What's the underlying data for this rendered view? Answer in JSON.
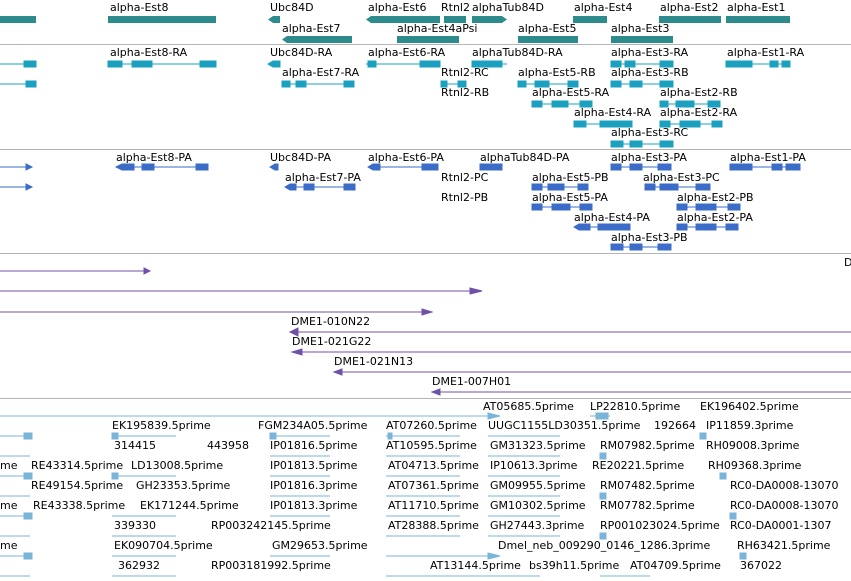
{
  "track_gene": {
    "labels": [
      "alpha-Est8",
      "Ubc84D",
      "alpha-Est6",
      "Rtnl2",
      "alphaTub84D",
      "alpha-Est4",
      "alpha-Est2",
      "alpha-Est1",
      "alpha-Est7",
      "alpha-Est4aPsi",
      "alpha-Est5",
      "alpha-Est3"
    ],
    "color": "#2e8b8b"
  },
  "track_mrna": {
    "labels": [
      "alpha-Est8-RA",
      "Ubc84D-RA",
      "alpha-Est6-RA",
      "alphaTub84D-RA",
      "alpha-Est3-RA",
      "alpha-Est1-RA",
      "alpha-Est7-RA",
      "Rtnl2-RC",
      "alpha-Est5-RB",
      "alpha-Est3-RB",
      "Rtnl2-RB",
      "alpha-Est5-RA",
      "alpha-Est2-RB",
      "alpha-Est4-RA",
      "alpha-Est2-RA",
      "alpha-Est3-RC"
    ],
    "color": "#1ba0c0"
  },
  "track_protein": {
    "labels": [
      "alpha-Est8-PA",
      "Ubc84D-PA",
      "alpha-Est6-PA",
      "alphaTub84D-PA",
      "alpha-Est3-PA",
      "alpha-Est1-PA",
      "alpha-Est7-PA",
      "Rtnl2-PC",
      "alpha-Est5-PB",
      "alpha-Est3-PC",
      "Rtnl2-PB",
      "alpha-Est5-PA",
      "alpha-Est2-PB",
      "alpha-Est4-PA",
      "alpha-Est2-PA",
      "alpha-Est3-PB"
    ],
    "color": "#3a6cc8"
  },
  "track_bac": {
    "labels": [
      "D",
      "DME1-010N22",
      "DME1-021G22",
      "DME1-021N13",
      "DME1-007H01"
    ],
    "color": "#7050a8"
  },
  "track_est": {
    "labels": [
      "AT05685.5prime",
      "LP22810.5prime",
      "EK196402.5prime",
      "EK195839.5prime",
      "FGM234A05.5prime",
      "AT07260.5prime",
      "UUGC1155LD30351.5prime",
      "192664",
      "IP11859.3prime",
      "314415",
      "443958",
      "IP01816.5prime",
      "AT10595.5prime",
      "GM31323.5prime",
      "RM07982.5prime",
      "RH09008.3prime",
      "me",
      "RE43314.5prime",
      "LD13008.5prime",
      "IP01813.5prime",
      "AT04713.5prime",
      "IP10613.3prime",
      "RE20221.5prime",
      "RH09368.3prime",
      "RE49154.5prime",
      "GH23353.5prime",
      "IP01816.3prime",
      "AT07361.5prime",
      "GM09955.5prime",
      "RM07482.5prime",
      "RC0-DA0008-13070",
      "me",
      "RE43338.5prime",
      "EK171244.5prime",
      "IP01813.3prime",
      "AT11710.5prime",
      "GM10302.5prime",
      "RM07782.5prime",
      "RC0-DA0008-13070",
      "339330",
      "RP003242145.5prime",
      "AT28388.5prime",
      "GH27443.3prime",
      "RP001023024.5prime",
      "RC0-DA0001-1307",
      "me",
      "EK090704.5prime",
      "GM29653.5prime",
      "Dmel_neb_009290_0146_1286.3prime",
      "RH63421.5prime",
      "362932",
      "RP003181992.5prime",
      "AT13144.5prime",
      "bs39h11.5prime",
      "AT04709.5prime",
      "367022"
    ],
    "color": "#7ab4d8"
  }
}
